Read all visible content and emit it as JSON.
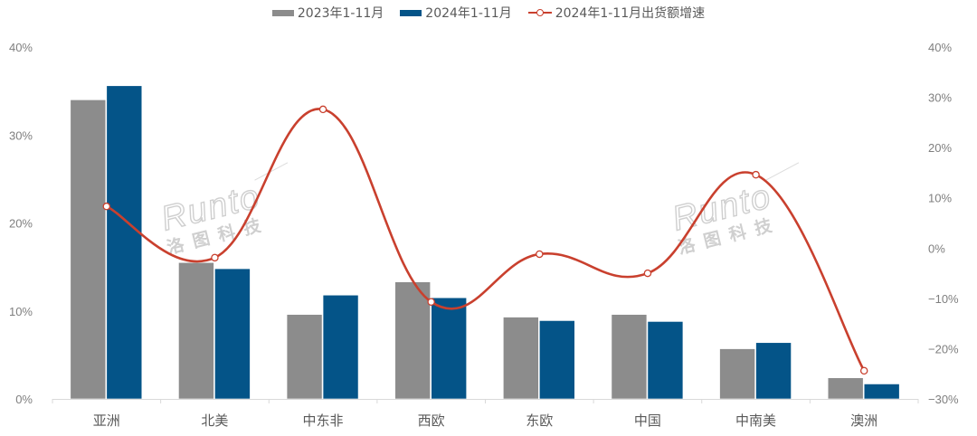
{
  "legend": {
    "items": [
      {
        "label": "2023年1-11月",
        "type": "bar",
        "color": "#8c8c8c"
      },
      {
        "label": "2024年1-11月",
        "type": "bar",
        "color": "#045488"
      },
      {
        "label": "2024年1-11月出货额增速",
        "type": "line",
        "color": "#c9402e"
      }
    ]
  },
  "watermark": {
    "latin": "Runto",
    "cn": "洛图科技"
  },
  "chart_data": {
    "type": "bar",
    "title": "",
    "xlabel": "",
    "ylabel": "",
    "categories": [
      "亚洲",
      "北美",
      "中东非",
      "西欧",
      "东欧",
      "中国",
      "中南美",
      "澳洲"
    ],
    "series": [
      {
        "name": "2023年1-11月",
        "type": "bar",
        "axis": "left",
        "color": "#8c8c8c",
        "values": [
          34.0,
          15.5,
          9.6,
          13.3,
          9.3,
          9.6,
          5.7,
          2.4
        ]
      },
      {
        "name": "2024年1-11月",
        "type": "bar",
        "axis": "left",
        "color": "#045488",
        "values": [
          35.6,
          14.8,
          11.8,
          11.5,
          8.9,
          8.8,
          6.4,
          1.7
        ]
      },
      {
        "name": "2024年1-11月出货额增速",
        "type": "line",
        "axis": "right",
        "color": "#c9402e",
        "smooth": true,
        "values": [
          8.3,
          -1.9,
          27.6,
          -10.7,
          -1.2,
          -5.0,
          14.6,
          -24.4
        ]
      }
    ],
    "ylim": [
      0,
      40
    ],
    "y_ticks": [
      "0%",
      "10%",
      "20%",
      "30%",
      "40%"
    ],
    "y2lim": [
      -30,
      40
    ],
    "y2_ticks": [
      "-30%",
      "-20%",
      "-10%",
      "0%",
      "10%",
      "20%",
      "30%",
      "40%"
    ],
    "grid": false,
    "legend_position": "top"
  }
}
